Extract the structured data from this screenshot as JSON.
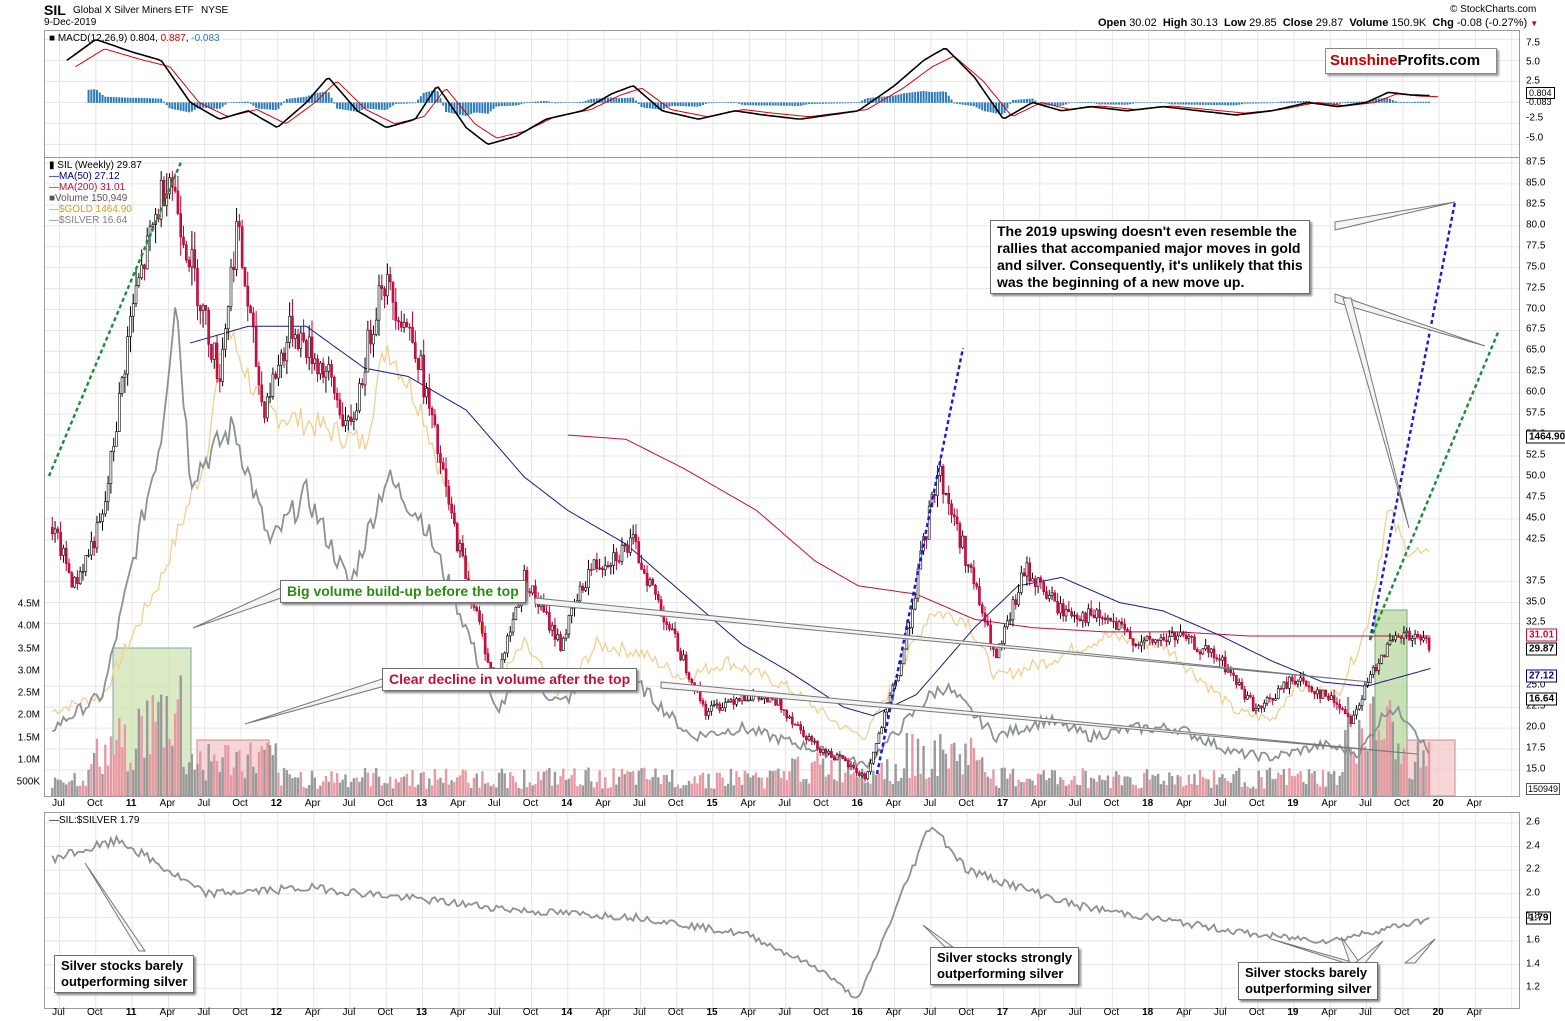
{
  "header": {
    "symbol": "SIL",
    "name": "Global X Silver Miners ETF",
    "exchange": "NYSE",
    "date": "9-Dec-2019",
    "open_label": "Open",
    "open": "30.02",
    "high_label": "High",
    "high": "30.13",
    "low_label": "Low",
    "low": "29.85",
    "close_label": "Close",
    "close": "29.87",
    "volume_label": "Volume",
    "volume": "150.9K",
    "chg_label": "Chg",
    "chg": "-0.08 (-0.27%)",
    "copyright": "© StockCharts.com"
  },
  "logo": {
    "part1": "Sunshine",
    "part2": "Profits.com"
  },
  "macd": {
    "legend_label": "MACD(12,26,9)",
    "v1": "0.804",
    "v2": "0.887",
    "v3": "-0.083",
    "tick_labels": [
      "7.5",
      "5.0",
      "2.5",
      "-2.5",
      "-5.0"
    ],
    "tag_a": "0.804",
    "tag_b": "-0.083",
    "colors": {
      "macd": "#000000",
      "signal": "#dd0000",
      "hist": "#2b7bb9"
    }
  },
  "main": {
    "legend": [
      {
        "text": "SIL (Weekly) 29.87",
        "color": "#000000"
      },
      {
        "text": "MA(50) 27.12",
        "color": "#000080"
      },
      {
        "text": "MA(200) 31.01",
        "color": "#c0103a"
      },
      {
        "text": "Volume 150,949",
        "color": "#555555"
      },
      {
        "text": "$GOLD 1464.90",
        "color": "#d4a017"
      },
      {
        "text": "$SILVER 16.64",
        "color": "#808080"
      }
    ],
    "price_ticks": [
      "87.5",
      "85.0",
      "82.5",
      "80.0",
      "77.5",
      "75.0",
      "72.5",
      "70.0",
      "67.5",
      "65.0",
      "62.5",
      "60.0",
      "57.5",
      "55.0",
      "52.5",
      "50.0",
      "47.5",
      "45.0",
      "42.5",
      "37.5",
      "35.0",
      "32.5",
      "25.0",
      "22.5",
      "20.0",
      "17.5",
      "15.0"
    ],
    "price_tags": {
      "gold": "1464.90",
      "ma200": "31.01",
      "close": "29.87",
      "ma50": "27.12",
      "silver": "16.64",
      "volume": "150949"
    },
    "volume_ticks": [
      "4.5M",
      "4.0M",
      "3.5M",
      "3.0M",
      "2.5M",
      "2.0M",
      "1.5M",
      "1.0M",
      "500K"
    ],
    "callout_main": [
      "The 2019 upswing doesn't even resemble the",
      "rallies that accompanied major moves in gold",
      "and silver. Consequently, it's unlikely that this",
      "was the beginning of a new move up."
    ],
    "callout_volume": "Big volume build-up before the top",
    "callout_decline": "Clear decline in volume after the top"
  },
  "ratio": {
    "legend_label": "SIL:$SILVER 1.79",
    "ticks": [
      "2.6",
      "2.4",
      "2.2",
      "2.0",
      "1.8",
      "1.6",
      "1.4",
      "1.2"
    ],
    "tag": "1.79",
    "callout_left": [
      "Silver stocks barely",
      "outperforming silver"
    ],
    "callout_mid": [
      "Silver stocks strongly",
      "outperforming silver"
    ],
    "callout_right": [
      "Silver stocks barely",
      "outperforming silver"
    ]
  },
  "x_axis": {
    "labels": [
      "Jul",
      "Oct",
      "11",
      "Apr",
      "Jul",
      "Oct",
      "12",
      "Apr",
      "Jul",
      "Oct",
      "13",
      "Apr",
      "Jul",
      "Oct",
      "14",
      "Apr",
      "Jul",
      "Oct",
      "15",
      "Apr",
      "Jul",
      "Oct",
      "16",
      "Apr",
      "Jul",
      "Oct",
      "17",
      "Apr",
      "Jul",
      "Oct",
      "18",
      "Apr",
      "Jul",
      "Oct",
      "19",
      "Apr",
      "Jul",
      "Oct",
      "20",
      "Apr"
    ]
  },
  "chart_data": [
    {
      "type": "line",
      "title": "SIL Global X Silver Miners ETF NYSE (Weekly)",
      "x": [
        "2010-07",
        "2011-04",
        "2011-10",
        "2012-04",
        "2012-10",
        "2013-04",
        "2013-10",
        "2014-04",
        "2014-10",
        "2015-04",
        "2015-10",
        "2016-01",
        "2016-07",
        "2016-10",
        "2017-04",
        "2017-10",
        "2018-04",
        "2018-10",
        "2019-04",
        "2019-07",
        "2019-12"
      ],
      "series": [
        {
          "name": "SIL (Weekly)",
          "values": [
            38,
            87,
            72,
            70,
            64,
            45,
            33,
            40,
            30,
            25,
            17,
            15,
            52,
            40,
            35,
            30,
            31,
            24,
            23,
            30,
            29.87
          ]
        },
        {
          "name": "MA(50)",
          "values": [
            null,
            null,
            68,
            66,
            62,
            58,
            52,
            45,
            42,
            35,
            28,
            24,
            26,
            35,
            37,
            36,
            35,
            33,
            27,
            26,
            27.12
          ]
        },
        {
          "name": "MA(200)",
          "values": [
            null,
            null,
            null,
            null,
            null,
            null,
            null,
            null,
            55,
            52,
            49,
            47,
            44,
            40,
            38,
            36,
            35,
            33,
            32,
            31,
            31.01
          ]
        }
      ],
      "ylim": [
        15,
        87.5
      ]
    },
    {
      "type": "line",
      "title": "SIL:$SILVER",
      "x": [
        "2010-07",
        "2010-12",
        "2011-07",
        "2012-04",
        "2013-01",
        "2013-10",
        "2014-07",
        "2015-04",
        "2015-10",
        "2016-01",
        "2016-07",
        "2016-10",
        "2017-07",
        "2018-04",
        "2018-10",
        "2019-04",
        "2019-12"
      ],
      "values": [
        2.3,
        2.45,
        2.0,
        2.05,
        1.95,
        1.85,
        1.8,
        1.65,
        1.35,
        1.1,
        2.6,
        2.2,
        1.9,
        1.75,
        1.65,
        1.6,
        1.79
      ],
      "ylim": [
        1.1,
        2.6
      ]
    }
  ]
}
